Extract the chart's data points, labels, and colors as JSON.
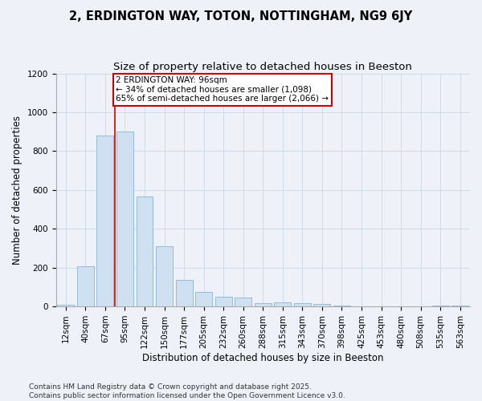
{
  "title": "2, ERDINGTON WAY, TOTON, NOTTINGHAM, NG9 6JY",
  "subtitle": "Size of property relative to detached houses in Beeston",
  "xlabel": "Distribution of detached houses by size in Beeston",
  "ylabel": "Number of detached properties",
  "bar_color": "#cfe0f0",
  "bar_edge_color": "#8ab4d8",
  "grid_color": "#c8d8e8",
  "background_color": "#eef2f8",
  "categories": [
    "12sqm",
    "40sqm",
    "67sqm",
    "95sqm",
    "122sqm",
    "150sqm",
    "177sqm",
    "205sqm",
    "232sqm",
    "260sqm",
    "288sqm",
    "315sqm",
    "343sqm",
    "370sqm",
    "398sqm",
    "425sqm",
    "453sqm",
    "480sqm",
    "508sqm",
    "535sqm",
    "563sqm"
  ],
  "values": [
    10,
    205,
    880,
    900,
    565,
    310,
    135,
    75,
    50,
    45,
    15,
    20,
    18,
    12,
    5,
    2,
    2,
    1,
    0,
    5,
    3
  ],
  "vline_x": 3,
  "vline_color": "#cc0000",
  "annotation_text": "2 ERDINGTON WAY: 96sqm\n← 34% of detached houses are smaller (1,098)\n65% of semi-detached houses are larger (2,066) →",
  "annotation_box_color": "#ffffff",
  "annotation_box_edge": "#cc0000",
  "ylim": [
    0,
    1200
  ],
  "yticks": [
    0,
    200,
    400,
    600,
    800,
    1000,
    1200
  ],
  "footer": "Contains HM Land Registry data © Crown copyright and database right 2025.\nContains public sector information licensed under the Open Government Licence v3.0.",
  "title_fontsize": 10.5,
  "subtitle_fontsize": 9.5,
  "axis_label_fontsize": 8.5,
  "tick_fontsize": 7.5,
  "annotation_fontsize": 7.5,
  "footer_fontsize": 6.5
}
